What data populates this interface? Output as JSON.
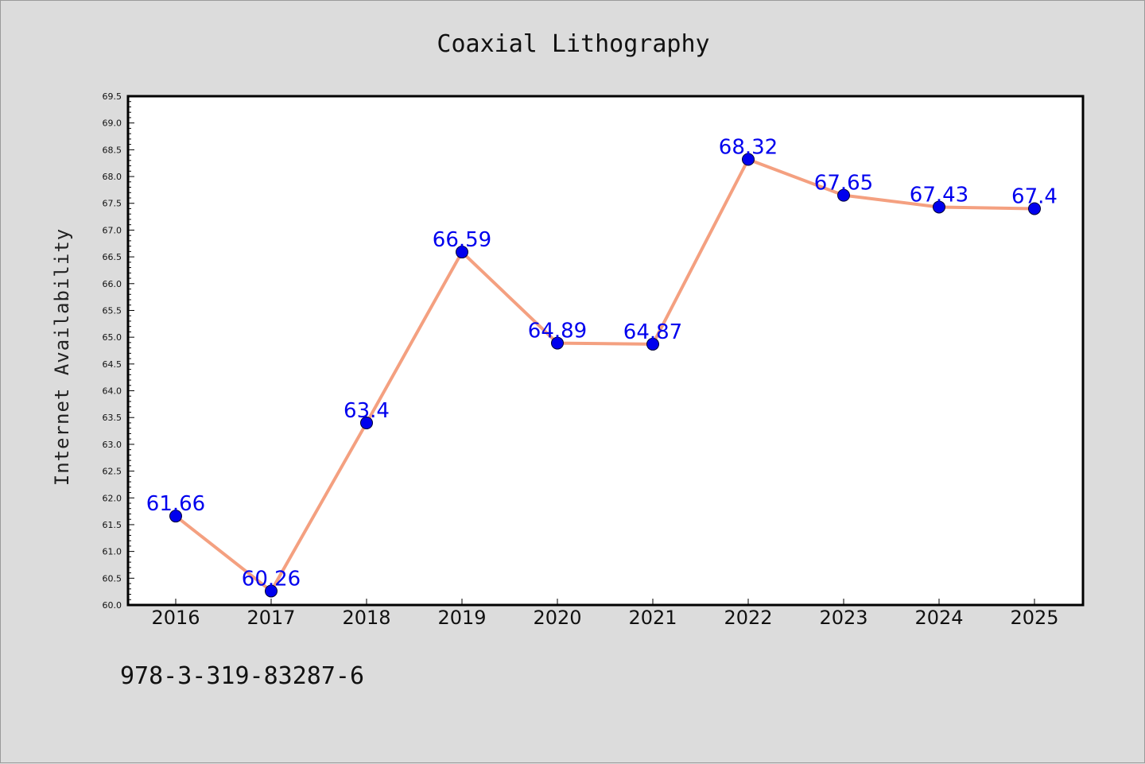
{
  "chart_data": {
    "type": "line",
    "title": "Coaxial Lithography",
    "xlabel": "",
    "ylabel": "Internet Availability",
    "categories": [
      "2016",
      "2017",
      "2018",
      "2019",
      "2020",
      "2021",
      "2022",
      "2023",
      "2024",
      "2025"
    ],
    "series": [
      {
        "values": [
          61.66,
          60.26,
          63.4,
          66.59,
          64.89,
          64.87,
          68.32,
          67.65,
          67.43,
          67.4
        ],
        "data_labels": [
          "61.66",
          "60.26",
          "63.4",
          "66.59",
          "64.89",
          "64.87",
          "68.32",
          "67.65",
          "67.43",
          "67.4"
        ],
        "line_color": "#f4a080",
        "marker_color": "#0000ee",
        "label_color": "#0000ee"
      }
    ],
    "ylim": [
      60.0,
      69.5
    ],
    "yticks": [
      "60.0",
      "60.5",
      "61.0",
      "61.5",
      "62.0",
      "62.5",
      "63.0",
      "63.5",
      "64.0",
      "64.5",
      "65.0",
      "65.5",
      "66.0",
      "66.5",
      "67.0",
      "67.5",
      "68.0",
      "68.5",
      "69.0",
      "69.5"
    ],
    "grid": false,
    "legend": "none"
  },
  "footer": {
    "isbn": "978-3-319-83287-6"
  },
  "colors": {
    "background": "#dcdcdc",
    "plot_background": "#ffffff"
  }
}
